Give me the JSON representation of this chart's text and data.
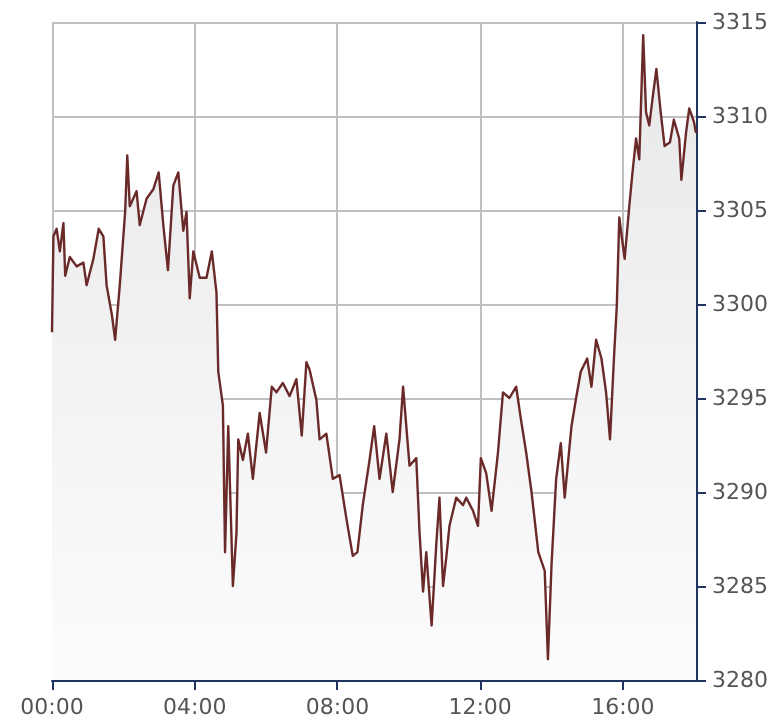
{
  "chart_data": {
    "type": "area",
    "grid": true,
    "marker": "none",
    "xlim": [
      0,
      18.05
    ],
    "xticks": [
      {
        "value": 0,
        "label": "00:00"
      },
      {
        "value": 4,
        "label": "04:00"
      },
      {
        "value": 8,
        "label": "08:00"
      },
      {
        "value": 12,
        "label": "12:00"
      },
      {
        "value": 16,
        "label": "16:00"
      }
    ],
    "ylim": [
      3280,
      3315
    ],
    "yticks": [
      3280,
      3285,
      3290,
      3295,
      3300,
      3305,
      3310,
      3315
    ],
    "series": [
      {
        "color": "#6b2a2a",
        "x": [
          0,
          0.04,
          0.13,
          0.22,
          0.32,
          0.37,
          0.5,
          0.69,
          0.88,
          0.97,
          1.16,
          1.31,
          1.44,
          1.53,
          1.68,
          1.77,
          1.9,
          2.05,
          2.11,
          2.18,
          2.37,
          2.46,
          2.65,
          2.84,
          2.99,
          3.12,
          3.25,
          3.4,
          3.54,
          3.68,
          3.77,
          3.86,
          3.96,
          4.14,
          4.33,
          4.48,
          4.61,
          4.66,
          4.79,
          4.85,
          4.94,
          5.07,
          5.17,
          5.22,
          5.35,
          5.49,
          5.63,
          5.82,
          6.0,
          6.16,
          6.29,
          6.47,
          6.66,
          6.85,
          7.0,
          7.13,
          7.22,
          7.41,
          7.5,
          7.69,
          7.87,
          8.06,
          8.25,
          8.43,
          8.56,
          8.71,
          8.9,
          9.03,
          9.18,
          9.37,
          9.55,
          9.74,
          9.84,
          10.02,
          10.21,
          10.3,
          10.4,
          10.49,
          10.64,
          10.77,
          10.86,
          10.96,
          11.05,
          11.14,
          11.33,
          11.52,
          11.61,
          11.8,
          11.94,
          12.02,
          12.17,
          12.32,
          12.5,
          12.64,
          12.82,
          13.01,
          13.14,
          13.29,
          13.44,
          13.63,
          13.81,
          13.9,
          14.0,
          14.13,
          14.26,
          14.37,
          14.56,
          14.69,
          14.82,
          15.0,
          15.12,
          15.25,
          15.4,
          15.53,
          15.64,
          15.75,
          15.83,
          15.9,
          16.05,
          16.18,
          16.27,
          16.37,
          16.46,
          16.57,
          16.65,
          16.74,
          16.83,
          16.94,
          17.06,
          17.17,
          17.32,
          17.43,
          17.58,
          17.64,
          17.77,
          17.86,
          17.99,
          18.05
        ],
        "values": [
          3298.5,
          3303.6,
          3304,
          3302.8,
          3304.3,
          3301.5,
          3302.5,
          3302,
          3302.2,
          3301,
          3302.4,
          3304,
          3303.6,
          3301,
          3299.4,
          3298.1,
          3301,
          3304.9,
          3307.9,
          3305.2,
          3306,
          3304.2,
          3305.6,
          3306.1,
          3307,
          3304.2,
          3301.8,
          3306.3,
          3307,
          3303.9,
          3304.9,
          3300.3,
          3302.8,
          3301.4,
          3301.4,
          3302.8,
          3300.6,
          3296.4,
          3294.6,
          3286.8,
          3293.5,
          3285,
          3287.8,
          3292.8,
          3291.7,
          3293.1,
          3290.7,
          3294.2,
          3292.1,
          3295.6,
          3295.3,
          3295.8,
          3295.1,
          3296,
          3293,
          3296.9,
          3296.5,
          3294.9,
          3292.8,
          3293.1,
          3290.7,
          3290.9,
          3288.6,
          3286.6,
          3286.8,
          3289.3,
          3291.7,
          3293.5,
          3290.7,
          3293.1,
          3290,
          3292.8,
          3295.6,
          3291.4,
          3291.8,
          3287.9,
          3284.7,
          3286.8,
          3282.9,
          3287.2,
          3289.7,
          3285,
          3286.5,
          3288.2,
          3289.7,
          3289.3,
          3289.7,
          3289,
          3288.2,
          3291.8,
          3291,
          3289,
          3292.1,
          3295.3,
          3295,
          3295.6,
          3293.9,
          3292.1,
          3290,
          3286.8,
          3285.8,
          3281.1,
          3286.1,
          3290.7,
          3292.6,
          3289.7,
          3293.5,
          3295,
          3296.4,
          3297.1,
          3295.6,
          3298.1,
          3297.1,
          3295.3,
          3292.8,
          3297.1,
          3299.9,
          3304.6,
          3302.4,
          3305.2,
          3307,
          3308.8,
          3307.7,
          3314.3,
          3310.2,
          3309.5,
          3310.9,
          3312.5,
          3310.2,
          3308.4,
          3308.6,
          3309.8,
          3308.8,
          3306.6,
          3309.1,
          3310.4,
          3309.7,
          3309.1
        ]
      }
    ]
  }
}
